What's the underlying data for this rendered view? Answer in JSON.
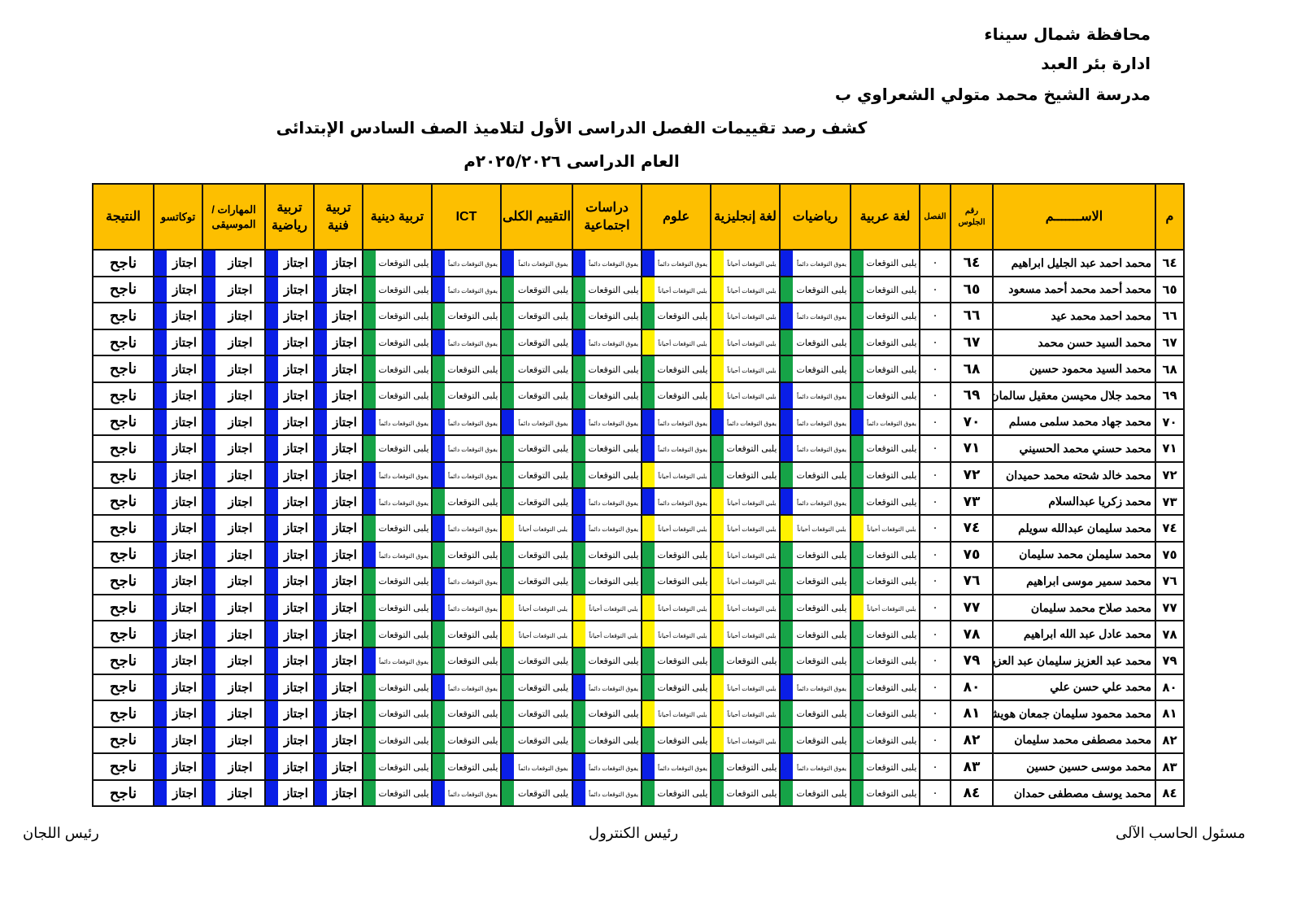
{
  "header": {
    "governorate": "محافظة شمال سيناء",
    "administration": "ادارة بئر العبد",
    "school": "مدرسة الشيخ محمد متولي الشعراوي ب",
    "title": "كشف رصد تقييمات الفصل الدراسى الأول لتلاميذ الصف السادس الإبتدائى",
    "year": "العام الدراسى ٢٠٢٥/٢٠٢٦م"
  },
  "columns": {
    "m": "م",
    "name": "الاســـــــم",
    "seat": "رقم الجلوس",
    "class": "الفصل",
    "arabic": "لغة عربية",
    "math": "رياضيات",
    "english": "لغة إنجليزية",
    "science": "علوم",
    "social": "دراسات اجتماعية",
    "overall": "التقييم الكلى",
    "ict": "ICT",
    "religion": "تربية دينية",
    "art": "تربية فنية",
    "sport": "تربية رياضية",
    "music": "المهارات / الموسيقى",
    "tokkatsu": "توكاتسو",
    "result": "النتيجة"
  },
  "levels": {
    "G": {
      "label": "يلبى التوقعات",
      "color": "#16a347"
    },
    "B": {
      "label": "يفوق التوقعات دائماً",
      "color": "#0a1ee6"
    },
    "Y": {
      "label": "يلبي التوقعات أحياناً",
      "color": "#fff200"
    }
  },
  "pass": {
    "label": "اجتاز",
    "color": "#0a1ee6"
  },
  "result_value": "ناجح",
  "rows": [
    {
      "m": "٦٤",
      "name": "محمد احمد عبد الجليل ابراهيم",
      "seat": "٦٤",
      "class": "٠",
      "grades": [
        "G",
        "B",
        "Y",
        "B",
        "B",
        "B",
        "B",
        "G"
      ]
    },
    {
      "m": "٦٥",
      "name": "محمد أحمد محمد أحمد مسعود",
      "seat": "٦٥",
      "class": "٠",
      "grades": [
        "G",
        "G",
        "Y",
        "Y",
        "G",
        "G",
        "B",
        "G"
      ]
    },
    {
      "m": "٦٦",
      "name": "محمد احمد محمد عيد",
      "seat": "٦٦",
      "class": "٠",
      "grades": [
        "G",
        "B",
        "Y",
        "G",
        "G",
        "G",
        "G",
        "G"
      ]
    },
    {
      "m": "٦٧",
      "name": "محمد السيد حسن محمد",
      "seat": "٦٧",
      "class": "٠",
      "grades": [
        "G",
        "G",
        "Y",
        "Y",
        "B",
        "G",
        "B",
        "G"
      ]
    },
    {
      "m": "٦٨",
      "name": "محمد السيد محمود حسين",
      "seat": "٦٨",
      "class": "٠",
      "grades": [
        "G",
        "G",
        "Y",
        "G",
        "G",
        "G",
        "G",
        "G"
      ]
    },
    {
      "m": "٦٩",
      "name": "محمد جلال محيسن معقيل سالمان",
      "seat": "٦٩",
      "class": "٠",
      "grades": [
        "G",
        "B",
        "Y",
        "G",
        "G",
        "G",
        "G",
        "G"
      ]
    },
    {
      "m": "٧٠",
      "name": "محمد جهاد محمد سلمى مسلم",
      "seat": "٧٠",
      "class": "٠",
      "grades": [
        "B",
        "B",
        "B",
        "B",
        "B",
        "B",
        "B",
        "B"
      ]
    },
    {
      "m": "٧١",
      "name": "محمد حسني محمد الحسيني",
      "seat": "٧١",
      "class": "٠",
      "grades": [
        "G",
        "B",
        "G",
        "B",
        "G",
        "G",
        "B",
        "G"
      ]
    },
    {
      "m": "٧٢",
      "name": "محمد خالد شحته محمد حميدان",
      "seat": "٧٢",
      "class": "٠",
      "grades": [
        "G",
        "G",
        "G",
        "Y",
        "G",
        "G",
        "B",
        "B"
      ]
    },
    {
      "m": "٧٣",
      "name": "محمد زكريا عبدالسلام",
      "seat": "٧٣",
      "class": "٠",
      "grades": [
        "G",
        "B",
        "Y",
        "B",
        "B",
        "G",
        "G",
        "B"
      ]
    },
    {
      "m": "٧٤",
      "name": "محمد سليمان عبدالله سويلم",
      "seat": "٧٤",
      "class": "٠",
      "grades": [
        "Y",
        "Y",
        "Y",
        "Y",
        "B",
        "Y",
        "B",
        "G"
      ]
    },
    {
      "m": "٧٥",
      "name": "محمد سليملن محمد سليمان",
      "seat": "٧٥",
      "class": "٠",
      "grades": [
        "G",
        "G",
        "Y",
        "G",
        "G",
        "G",
        "G",
        "B"
      ]
    },
    {
      "m": "٧٦",
      "name": "محمد سمير موسى ابراهيم",
      "seat": "٧٦",
      "class": "٠",
      "grades": [
        "G",
        "G",
        "Y",
        "G",
        "G",
        "G",
        "B",
        "G"
      ]
    },
    {
      "m": "٧٧",
      "name": "محمد صلاح محمد سليمان",
      "seat": "٧٧",
      "class": "٠",
      "grades": [
        "Y",
        "G",
        "Y",
        "Y",
        "Y",
        "Y",
        "B",
        "G"
      ]
    },
    {
      "m": "٧٨",
      "name": "محمد عادل عبد الله ابراهيم",
      "seat": "٧٨",
      "class": "٠",
      "grades": [
        "G",
        "G",
        "Y",
        "Y",
        "Y",
        "Y",
        "G",
        "G"
      ]
    },
    {
      "m": "٧٩",
      "name": "محمد عبد العزيز سليمان عبد العزيز",
      "seat": "٧٩",
      "class": "٠",
      "grades": [
        "G",
        "G",
        "G",
        "G",
        "G",
        "G",
        "G",
        "B"
      ]
    },
    {
      "m": "٨٠",
      "name": "محمد علي حسن علي",
      "seat": "٨٠",
      "class": "٠",
      "grades": [
        "G",
        "B",
        "Y",
        "G",
        "B",
        "G",
        "B",
        "G"
      ]
    },
    {
      "m": "٨١",
      "name": "محمد محمود سليمان جمعان هويشل",
      "seat": "٨١",
      "class": "٠",
      "grades": [
        "G",
        "G",
        "Y",
        "Y",
        "G",
        "G",
        "G",
        "G"
      ]
    },
    {
      "m": "٨٢",
      "name": "محمد مصطفى محمد سليمان",
      "seat": "٨٢",
      "class": "٠",
      "grades": [
        "G",
        "G",
        "Y",
        "G",
        "G",
        "G",
        "G",
        "G"
      ]
    },
    {
      "m": "٨٣",
      "name": "محمد موسى حسين حسين",
      "seat": "٨٣",
      "class": "٠",
      "grades": [
        "G",
        "B",
        "G",
        "B",
        "B",
        "B",
        "G",
        "G"
      ]
    },
    {
      "m": "٨٤",
      "name": "محمد يوسف مصطفى حمدان",
      "seat": "٨٤",
      "class": "٠",
      "grades": [
        "G",
        "G",
        "G",
        "G",
        "B",
        "G",
        "B",
        "G"
      ]
    }
  ],
  "footer": {
    "committees_head": "رئيس اللجان",
    "control_head": "رئيس الكنترول",
    "computer_officer": "مسئول الحاسب الآلى"
  }
}
